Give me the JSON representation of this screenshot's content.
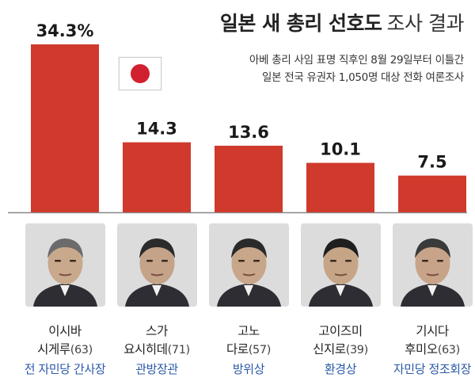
{
  "title": {
    "main": "일본 새 총리 선호도",
    "sub": "조사 결과"
  },
  "notes": [
    "아베 총리 사임 표명 직후인 8월 29일부터 이틀간",
    "일본 전국 유권자 1,050명 대상 전화 여론조사"
  ],
  "colors": {
    "bar": "#cf3a2c",
    "role_text": "#2a59a8",
    "baseline": "#888888",
    "flag_sun": "#d1202f"
  },
  "chart_data": {
    "type": "bar",
    "categories": [
      "이시바 시게루",
      "스가 요시히데",
      "고노 다로",
      "고이즈미 신지로",
      "기시다 후미오"
    ],
    "values": [
      34.3,
      14.3,
      13.6,
      10.1,
      7.5
    ],
    "value_labels": [
      "34.3%",
      "14.3",
      "13.6",
      "10.1",
      "7.5"
    ],
    "unit": "%",
    "ylim": [
      0,
      34.3
    ],
    "grid": false,
    "title": "일본 새 총리 선호도 조사 결과"
  },
  "candidates": [
    {
      "line1": "이시바",
      "line2_name": "시게루",
      "age": "(63)",
      "role": "전 자민당 간사장"
    },
    {
      "line1": "스가",
      "line2_name": "요시히데",
      "age": "(71)",
      "role": "관방장관"
    },
    {
      "line1": "고노",
      "line2_name": "다로",
      "age": "(57)",
      "role": "방위상"
    },
    {
      "line1": "고이즈미",
      "line2_name": "신지로",
      "age": "(39)",
      "role": "환경상"
    },
    {
      "line1": "기시다",
      "line2_name": "후미오",
      "age": "(63)",
      "role": "자민당 정조회장"
    }
  ]
}
